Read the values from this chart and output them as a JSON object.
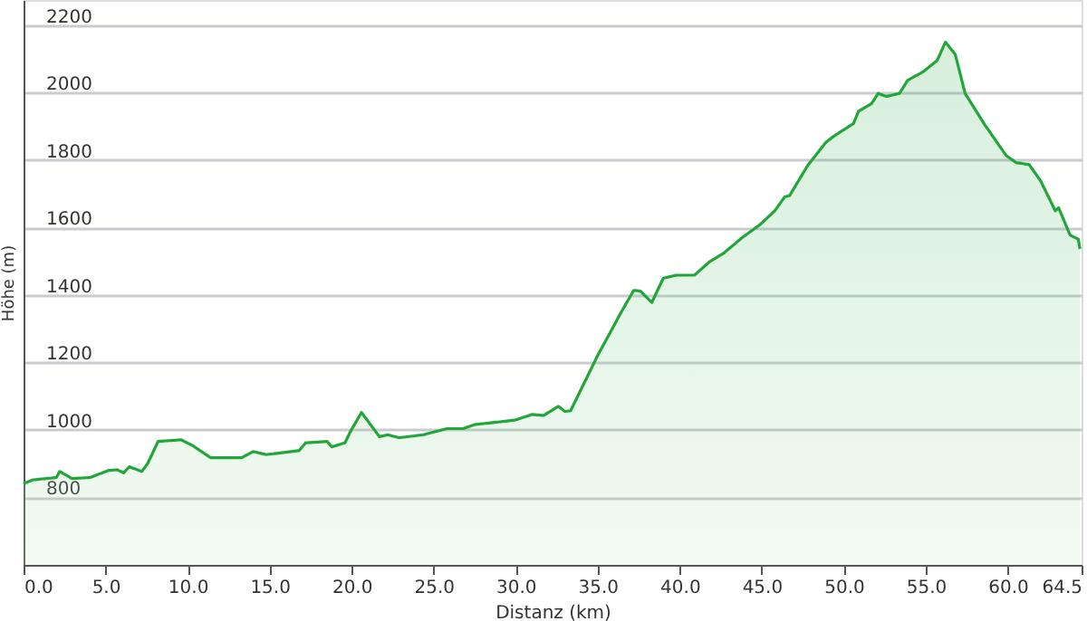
{
  "chart_data": {
    "type": "area",
    "xlabel": "Distanz  (km)",
    "ylabel": "Höhe (m)",
    "xlim": [
      0,
      64.5
    ],
    "ylim": [
      600,
      2275
    ],
    "xticks": [
      {
        "value": 0,
        "label": "0.0"
      },
      {
        "value": 5,
        "label": "5.0"
      },
      {
        "value": 10,
        "label": "10.0"
      },
      {
        "value": 15,
        "label": "15.0"
      },
      {
        "value": 20,
        "label": "20.0"
      },
      {
        "value": 25,
        "label": "25.0"
      },
      {
        "value": 30,
        "label": "30.0"
      },
      {
        "value": 35,
        "label": "35.0"
      },
      {
        "value": 40,
        "label": "40.0"
      },
      {
        "value": 45,
        "label": "45.0"
      },
      {
        "value": 50,
        "label": "50.0"
      },
      {
        "value": 55,
        "label": "55.0"
      },
      {
        "value": 60,
        "label": "60.0"
      },
      64.5
    ],
    "yticks": [
      800,
      1000,
      1200,
      1400,
      1600,
      1800,
      2000,
      2200
    ],
    "grid": "y",
    "series": [
      {
        "color": "#22a63a",
        "x": [
          0,
          0.55,
          2.0,
          2.2,
          2.95,
          4.06,
          5.17,
          5.7,
          6.1,
          6.45,
          7.2,
          7.56,
          8.2,
          9.6,
          10.3,
          11.4,
          13.3,
          14.0,
          14.8,
          16.8,
          17.2,
          18.5,
          18.8,
          19.6,
          19.9,
          20.6,
          21.7,
          22.2,
          22.9,
          24.4,
          25.8,
          26.8,
          27.5,
          29.2,
          30.0,
          31.0,
          31.7,
          32.6,
          33.0,
          33.35,
          35.0,
          36.5,
          37.2,
          37.6,
          38.3,
          39.0,
          39.8,
          40.9,
          41.8,
          42.7,
          43.8,
          44.9,
          45.8,
          46.4,
          46.7,
          47.8,
          48.9,
          49.3,
          50.6,
          50.9,
          51.7,
          52.1,
          52.6,
          53.4,
          53.9,
          54.8,
          55.7,
          56.2,
          56.8,
          57.4,
          58.6,
          59.9,
          60.5,
          61.3,
          62.0,
          62.9,
          63.1,
          63.8,
          64.3,
          64.4
        ],
        "values": [
          841,
          852,
          859,
          877,
          856,
          859,
          880,
          882,
          873,
          891,
          877,
          900,
          966,
          971,
          954,
          918,
          918,
          936,
          927,
          939,
          962,
          966,
          950,
          962,
          993,
          1052,
          980,
          986,
          977,
          986,
          1004,
          1004,
          1016,
          1025,
          1030,
          1046,
          1043,
          1070,
          1055,
          1057,
          1221,
          1355,
          1414,
          1412,
          1378,
          1450,
          1459,
          1459,
          1498,
          1525,
          1570,
          1609,
          1650,
          1691,
          1695,
          1784,
          1852,
          1868,
          1909,
          1945,
          1968,
          1998,
          1989,
          1998,
          2037,
          2061,
          2096,
          2150,
          2114,
          1998,
          1905,
          1814,
          1793,
          1787,
          1739,
          1650,
          1659,
          1578,
          1566,
          1537
        ]
      }
    ]
  }
}
